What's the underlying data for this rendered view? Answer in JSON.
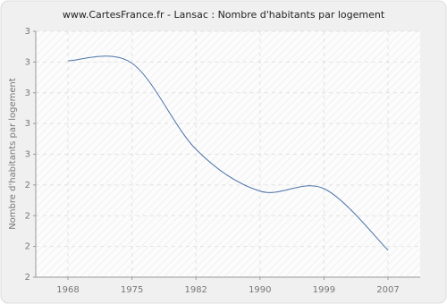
{
  "chart_data": {
    "type": "line",
    "title": "www.CartesFrance.fr - Lansac : Nombre d'habitants par logement",
    "y_label": "Nombre d'habitants par logement",
    "categories": [
      "1968",
      "1975",
      "1982",
      "1990",
      "1999",
      "2007"
    ],
    "series": [
      {
        "name": "Lansac",
        "color": "#4a72a8",
        "values": [
          2.88,
          2.87,
          2.52,
          2.35,
          2.36,
          2.11
        ]
      }
    ],
    "ylim": [
      2,
      3
    ],
    "yticks": [
      {
        "value": 2,
        "label": "2"
      },
      {
        "value": 2.125,
        "label": "2"
      },
      {
        "value": 2.25,
        "label": "2"
      },
      {
        "value": 2.375,
        "label": "2"
      },
      {
        "value": 2.5,
        "label": "3"
      },
      {
        "value": 2.625,
        "label": "3"
      },
      {
        "value": 2.75,
        "label": "3"
      },
      {
        "value": 2.875,
        "label": "3"
      },
      {
        "value": 3,
        "label": "3"
      }
    ],
    "grid": true
  }
}
